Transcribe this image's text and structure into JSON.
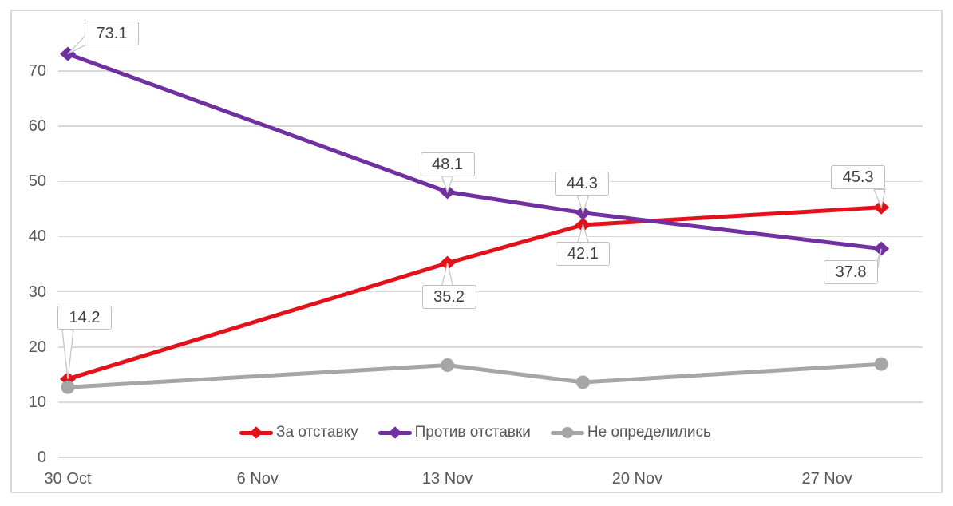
{
  "chart_data": {
    "type": "line",
    "title": "",
    "grid": true,
    "legend_position": "bottom-inside",
    "colors": {
      "axis_text": "#595959",
      "gridline": "#d9d9d9",
      "callout_border": "#bfbfbf",
      "callout_text": "#404040",
      "chart_border": "#d9d9d9"
    },
    "x_axis": {
      "tick_labels": [
        "30 Oct",
        "6 Nov",
        "13 Nov",
        "20 Nov",
        "27 Nov"
      ],
      "tick_days": [
        0,
        7,
        14,
        21,
        28
      ]
    },
    "y_axis": {
      "ticks": [
        0,
        10,
        20,
        30,
        40,
        50,
        60,
        70
      ],
      "range": [
        0,
        75
      ]
    },
    "series": [
      {
        "name": "За отставку",
        "color": "#e3121a",
        "marker": "diamond",
        "days": [
          0,
          14,
          19,
          30
        ],
        "values": [
          14.2,
          35.2,
          42.1,
          45.3
        ],
        "data_labels": [
          {
            "text": "14.2",
            "offset": {
              "dx": 21,
              "dy": -76
            }
          },
          {
            "text": "35.2",
            "offset": {
              "dx": 2,
              "dy": 43
            }
          },
          {
            "text": "42.1",
            "offset": {
              "dx": 0,
              "dy": 37
            }
          },
          {
            "text": "45.3",
            "offset": {
              "dx": -29,
              "dy": -37
            }
          }
        ]
      },
      {
        "name": "Против отставки",
        "color": "#7030a0",
        "marker": "diamond",
        "days": [
          0,
          14,
          19,
          30
        ],
        "values": [
          73.1,
          48.1,
          44.3,
          37.8
        ],
        "data_labels": [
          {
            "text": "73.1",
            "offset": {
              "dx": 55,
              "dy": -25
            }
          },
          {
            "text": "48.1",
            "offset": {
              "dx": 0,
              "dy": -34
            }
          },
          {
            "text": "44.3",
            "offset": {
              "dx": -1,
              "dy": -36
            }
          },
          {
            "text": "37.8",
            "offset": {
              "dx": -38,
              "dy": 30
            }
          }
        ]
      },
      {
        "name": "Не определились",
        "color": "#a6a6a6",
        "marker": "circle",
        "days": [
          0,
          14,
          19,
          30
        ],
        "values": [
          12.7,
          16.7,
          13.6,
          16.9
        ],
        "data_labels": []
      }
    ]
  }
}
